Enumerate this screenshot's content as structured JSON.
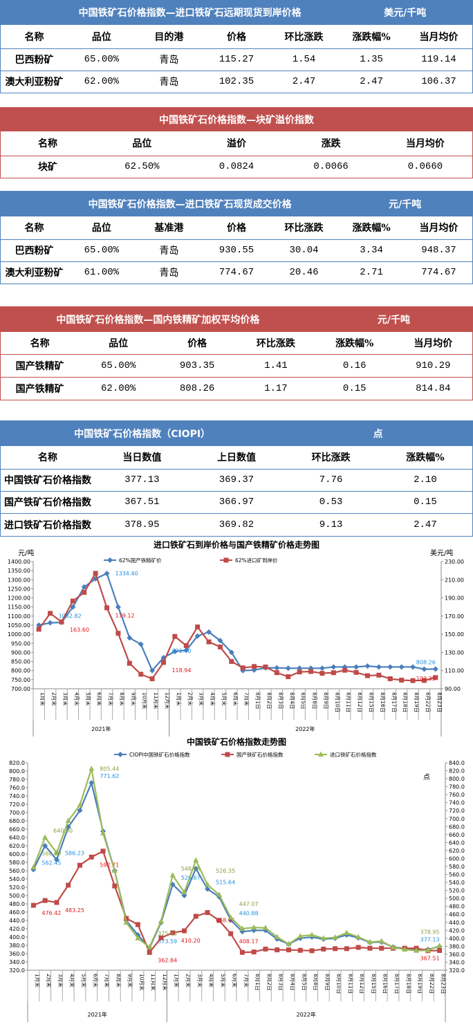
{
  "tables": [
    {
      "title": "中国铁矿石价格指数—进口铁矿石远期现货到岸价格",
      "unit": "美元/千吨",
      "color": "#4f81bd",
      "headers": [
        "名称",
        "品位",
        "目的港",
        "价格",
        "环比涨跌",
        "涨跌幅%",
        "当月均价"
      ],
      "rows": [
        [
          "巴西粉矿",
          "65.00%",
          "青岛",
          "115.27",
          "1.54",
          "1.35",
          "119.14"
        ],
        [
          "澳大利亚粉矿",
          "62.00%",
          "青岛",
          "102.35",
          "2.47",
          "2.47",
          "106.37"
        ]
      ]
    },
    {
      "title": "中国铁矿石价格指数—块矿溢价指数",
      "unit": "",
      "color": "#c0504d",
      "headers": [
        "名称",
        "品位",
        "溢价",
        "涨跌",
        "当月均价"
      ],
      "rows": [
        [
          "块矿",
          "62.50%",
          "0.0824",
          "0.0066",
          "0.0660"
        ]
      ]
    },
    {
      "title": "中国铁矿石价格指数—进口铁矿石现货成交价格",
      "unit": "元/千吨",
      "color": "#4f81bd",
      "headers": [
        "名称",
        "品位",
        "基准港",
        "价格",
        "环比涨跌",
        "涨跌幅%",
        "当月均价"
      ],
      "rows": [
        [
          "巴西粉矿",
          "65.00%",
          "青岛",
          "930.55",
          "30.04",
          "3.34",
          "948.37"
        ],
        [
          "澳大利亚粉矿",
          "61.00%",
          "青岛",
          "774.67",
          "20.46",
          "2.71",
          "774.67"
        ]
      ]
    },
    {
      "title": "中国铁矿石价格指数—国内铁精矿加权平均价格",
      "unit": "元/千吨",
      "color": "#c0504d",
      "headers": [
        "名称",
        "品位",
        "价格",
        "环比涨跌",
        "涨跌幅%",
        "当月均价"
      ],
      "rows": [
        [
          "国产铁精矿",
          "65.00%",
          "903.35",
          "1.41",
          "0.16",
          "910.29"
        ],
        [
          "国产铁精矿",
          "62.00%",
          "808.26",
          "1.17",
          "0.15",
          "814.84"
        ]
      ]
    },
    {
      "title": "中国铁矿石价格指数（CIOPI）",
      "unit": "点",
      "color": "#4f81bd",
      "headers": [
        "名称",
        "当日数值",
        "上日数值",
        "环比涨跌",
        "涨跌幅%"
      ],
      "rows": [
        [
          "中国铁矿石价格指数",
          "377.13",
          "369.37",
          "7.76",
          "2.10"
        ],
        [
          "国产铁矿石价格指数",
          "367.51",
          "366.97",
          "0.53",
          "0.15"
        ],
        [
          "进口铁矿石价格指数",
          "378.95",
          "369.82",
          "9.13",
          "2.47"
        ]
      ]
    }
  ],
  "chart_data": [
    {
      "type": "line",
      "title": "进口铁矿石到岸价格与国产铁精矿价格走势图",
      "ylabel": "元/吨",
      "y2label": "美元/吨",
      "ylim": [
        700,
        1400
      ],
      "ystep": 50,
      "y2lim": [
        90,
        230
      ],
      "y2step": 20,
      "ydec": 2,
      "categories": [
        "1月末",
        "2月末",
        "3月末",
        "4月末",
        "5月末",
        "6月末",
        "7月末",
        "8月末",
        "9月末",
        "10月末",
        "11月末",
        "12月末",
        "1月末",
        "2月末",
        "3月末",
        "4月末",
        "5月末",
        "6月末",
        "7月末",
        "8月1日",
        "8月2日",
        "8月3日",
        "8月4日",
        "8月5日",
        "8月8日",
        "8月9日",
        "8月10日",
        "8月11日",
        "8月12日",
        "8月15日",
        "8月16日",
        "8月17日",
        "8月18日",
        "8月19日",
        "8月22日",
        "8月23日"
      ],
      "groups": [
        {
          "label": "2021年",
          "count": 12
        },
        {
          "label": "2022年",
          "count": 24
        }
      ],
      "series": [
        {
          "name": "62%国产铁精矿价",
          "color": "#4a7ebb",
          "marker": "diamond",
          "axis": "left",
          "label_color": "#1f8ee0",
          "values": [
            1050,
            1062.82,
            1065,
            1150,
            1260,
            1305,
            1334.4,
            1150,
            980,
            945,
            800,
            871.4,
            905,
            912,
            990,
            1012,
            965,
            900,
            800,
            803,
            815,
            815,
            813,
            813,
            813,
            813,
            820,
            820,
            820,
            825,
            820,
            820,
            820,
            820,
            808,
            808.26
          ],
          "labels": [
            1,
            6,
            11,
            35
          ]
        },
        {
          "name": "62%进口矿到岸价",
          "color": "#be4b48",
          "marker": "square",
          "axis": "right",
          "label_color": "#e0161b",
          "values": [
            155.5,
            173,
            163.6,
            186.5,
            196,
            217,
            179.12,
            151,
            118,
            106,
            101,
            118.94,
            147.6,
            137.5,
            158,
            141.6,
            136,
            120,
            113,
            114.5,
            114,
            107.7,
            103.3,
            108.5,
            109,
            107,
            107.7,
            110.4,
            108,
            104.4,
            105,
            101,
            99.5,
            99,
            99.2,
            102.35
          ],
          "labels": [
            2,
            6,
            11,
            35
          ]
        }
      ]
    },
    {
      "type": "line",
      "title": "中国铁矿石价格指数走势图",
      "ylabel": "",
      "y2label": "点",
      "ylim": [
        320,
        820
      ],
      "ystep": 20,
      "y2lim": [
        320,
        840
      ],
      "y2step": 20,
      "ydec": 1,
      "categories": [
        "1月末",
        "2月末",
        "3月末",
        "4月末",
        "5月末",
        "6月末",
        "7月末",
        "8月末",
        "9月末",
        "10月末",
        "11月末",
        "12月末",
        "1月末",
        "2月末",
        "3月末",
        "4月末",
        "5月末",
        "6月末",
        "7月末",
        "8月1日",
        "8月2日",
        "8月3日",
        "8月4日",
        "8月5日",
        "8月8日",
        "8月9日",
        "8月10日",
        "8月11日",
        "8月12日",
        "8月15日",
        "8月16日",
        "8月17日",
        "8月18日",
        "8月19日",
        "8月22日",
        "8月23日"
      ],
      "groups": [
        {
          "label": "2021年",
          "count": 12
        },
        {
          "label": "2022年",
          "count": 24
        }
      ],
      "series": [
        {
          "name": "CIOPI中国铁矿石价格指数",
          "color": "#4a7ebb",
          "marker": "diamond",
          "axis": "left",
          "label_color": "#1f8ee0",
          "values": [
            562.45,
            620,
            586.23,
            665,
            705,
            771.62,
            655,
            560,
            440,
            405,
            373.59,
            435,
            526.67,
            500,
            565,
            515.64,
            497,
            440.88,
            413,
            416,
            416,
            395,
            383,
            397,
            400,
            395,
            397,
            405,
            398,
            387,
            388,
            376,
            372,
            370,
            370,
            377.13
          ],
          "labels": [
            0,
            2,
            5,
            10,
            12,
            15,
            17,
            35
          ]
        },
        {
          "name": "国产铁矿石价格指数",
          "color": "#be4b48",
          "marker": "square",
          "axis": "left",
          "label_color": "#e0161b",
          "values": [
            476.42,
            488,
            483.25,
            525,
            573,
            592.71,
            607,
            523,
            445,
            430,
            362.84,
            398,
            410.2,
            415,
            450,
            458.95,
            440,
            408.17,
            363,
            364,
            371,
            369,
            369,
            368,
            367,
            371,
            372,
            372,
            375,
            373,
            373,
            373,
            373,
            373,
            367,
            367.51
          ],
          "labels": [
            0,
            2,
            5,
            10,
            12,
            15,
            17,
            35
          ]
        },
        {
          "name": "进口铁矿石价格指数",
          "color": "#9bbb59",
          "marker": "triangle",
          "axis": "left",
          "label_color": "#8aa043",
          "values": [
            568,
            640,
            603,
            680,
            718,
            805.44,
            650,
            560,
            435,
            397,
            375.63,
            438,
            548.68,
            508,
            585,
            526.35,
            502,
            447.07,
            420,
            423,
            422,
            400,
            383,
            402,
            405,
            397,
            399,
            410,
            400,
            388,
            390,
            375,
            370,
            367,
            368,
            378.95
          ],
          "labels": [
            0,
            1,
            5,
            10,
            12,
            15,
            17,
            35
          ]
        }
      ]
    }
  ]
}
